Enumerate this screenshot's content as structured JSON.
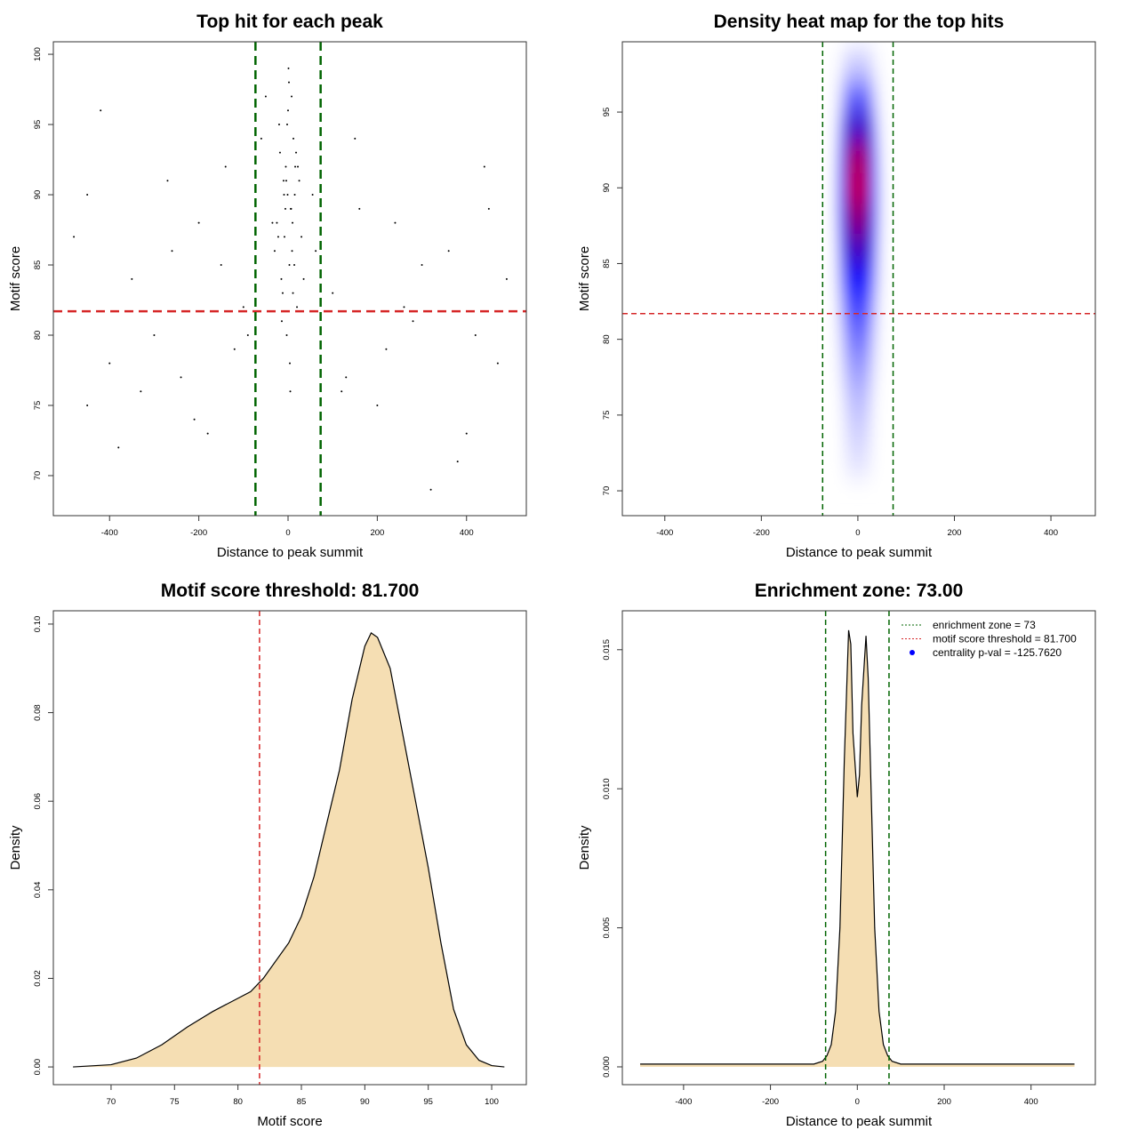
{
  "chart_data": [
    {
      "type": "scatter",
      "title": "Top hit for each peak",
      "xlabel": "Distance to peak summit",
      "ylabel": "Motif score",
      "x": [
        -5,
        10,
        -20,
        3,
        15,
        -12,
        25,
        -8,
        0,
        6,
        -30,
        18,
        -3,
        12,
        -15,
        8,
        -25,
        20,
        -1,
        4,
        -10,
        30,
        -18,
        14,
        2,
        -6,
        22,
        -14,
        9,
        -2,
        35,
        -35,
        5,
        -9,
        16,
        -22,
        1,
        11,
        -4,
        7,
        -480,
        -450,
        -420,
        -380,
        -350,
        -300,
        -270,
        -240,
        -200,
        -180,
        -150,
        -120,
        -100,
        -450,
        -330,
        -260,
        -210,
        -140,
        -90,
        -400,
        100,
        130,
        160,
        200,
        240,
        280,
        320,
        360,
        400,
        440,
        470,
        490,
        150,
        220,
        300,
        380,
        450,
        120,
        260,
        420,
        -60,
        55,
        -50,
        62
      ],
      "y": [
        92,
        88,
        95,
        85,
        90,
        83,
        91,
        87,
        96,
        89,
        86,
        93,
        80,
        94,
        84,
        97,
        88,
        82,
        90,
        78,
        91,
        87,
        93,
        85,
        98,
        89,
        92,
        81,
        86,
        95,
        84,
        88,
        76,
        90,
        92,
        87,
        99,
        83,
        91,
        89,
        87,
        75,
        96,
        72,
        84,
        80,
        91,
        77,
        88,
        73,
        85,
        79,
        82,
        90,
        76,
        86,
        74,
        92,
        80,
        78,
        83,
        77,
        89,
        75,
        88,
        81,
        69,
        86,
        73,
        92,
        78,
        84,
        94,
        79,
        85,
        71,
        89,
        76,
        82,
        80,
        94,
        90,
        97,
        86
      ],
      "color": "#000000",
      "xlim": [
        -526,
        534
      ],
      "ylim": [
        67.15,
        100.89
      ],
      "xticks": [
        -400,
        -200,
        0,
        200,
        400
      ],
      "yticks": [
        70,
        75,
        80,
        85,
        90,
        95,
        100
      ],
      "hlines": [
        {
          "value": 81.7,
          "color": "#d62728"
        }
      ],
      "vlines": [
        {
          "value": -73,
          "color": "#006400"
        },
        {
          "value": 73,
          "color": "#006400"
        }
      ]
    },
    {
      "type": "heatmap",
      "title": "Density heat map for the top hits",
      "xlabel": "Distance to peak summit",
      "ylabel": "Motif score",
      "x": [
        -45,
        -30,
        -15,
        0,
        15,
        30,
        45
      ],
      "y": [
        72,
        74,
        76,
        78,
        80,
        82,
        84,
        86,
        88,
        90,
        92,
        94,
        96,
        98
      ],
      "z": [
        [
          0,
          0.02,
          0.05,
          0.06,
          0.05,
          0.02,
          0
        ],
        [
          0,
          0.03,
          0.08,
          0.1,
          0.08,
          0.03,
          0
        ],
        [
          0,
          0.05,
          0.12,
          0.14,
          0.12,
          0.05,
          0
        ],
        [
          0.01,
          0.08,
          0.18,
          0.2,
          0.18,
          0.08,
          0.01
        ],
        [
          0.02,
          0.12,
          0.26,
          0.28,
          0.26,
          0.12,
          0.02
        ],
        [
          0.03,
          0.18,
          0.36,
          0.36,
          0.36,
          0.18,
          0.03
        ],
        [
          0.05,
          0.28,
          0.5,
          0.48,
          0.5,
          0.28,
          0.05
        ],
        [
          0.06,
          0.38,
          0.66,
          0.6,
          0.66,
          0.38,
          0.06
        ],
        [
          0.08,
          0.45,
          0.82,
          0.7,
          0.82,
          0.45,
          0.08
        ],
        [
          0.08,
          0.48,
          0.95,
          0.76,
          0.95,
          0.48,
          0.08
        ],
        [
          0.07,
          0.42,
          0.9,
          0.72,
          0.9,
          0.42,
          0.07
        ],
        [
          0.05,
          0.3,
          0.66,
          0.55,
          0.66,
          0.3,
          0.05
        ],
        [
          0.03,
          0.15,
          0.35,
          0.3,
          0.35,
          0.15,
          0.03
        ],
        [
          0.01,
          0.05,
          0.12,
          0.1,
          0.12,
          0.05,
          0.01
        ]
      ],
      "colormap": [
        "#ffffff",
        "#0000ff",
        "#ff0000"
      ],
      "xlim": [
        -488,
        492
      ],
      "ylim": [
        68.36,
        99.64
      ],
      "xticks": [
        -400,
        -200,
        0,
        200,
        400
      ],
      "yticks": [
        70,
        75,
        80,
        85,
        90,
        95
      ],
      "hlines": [
        {
          "value": 81.7,
          "color": "#d62728"
        }
      ],
      "vlines": [
        {
          "value": -73,
          "color": "#006400"
        },
        {
          "value": 73,
          "color": "#006400"
        }
      ]
    },
    {
      "type": "area",
      "title": "Motif score threshold: 81.700",
      "xlabel": "Motif score",
      "ylabel": "Density",
      "x": [
        67,
        70,
        72,
        74,
        76,
        78,
        80,
        81,
        82,
        84,
        85,
        86,
        87,
        88,
        89,
        90,
        90.5,
        91,
        92,
        93,
        94,
        95,
        96,
        97,
        98,
        99,
        100,
        101
      ],
      "values": [
        0,
        0.0005,
        0.002,
        0.005,
        0.009,
        0.0125,
        0.0155,
        0.017,
        0.02,
        0.028,
        0.034,
        0.043,
        0.055,
        0.067,
        0.083,
        0.095,
        0.098,
        0.097,
        0.09,
        0.075,
        0.06,
        0.045,
        0.028,
        0.013,
        0.005,
        0.0015,
        0.0003,
        0
      ],
      "color": "#f5deb3",
      "xlim": [
        65.45,
        102.73
      ],
      "ylim": [
        -0.004,
        0.103
      ],
      "xticks": [
        70,
        75,
        80,
        85,
        90,
        95,
        100
      ],
      "yticks": [
        {
          "value": 0,
          "label": "0.00"
        },
        {
          "value": 0.02,
          "label": "0.02"
        },
        {
          "value": 0.04,
          "label": "0.04"
        },
        {
          "value": 0.06,
          "label": "0.06"
        },
        {
          "value": 0.08,
          "label": "0.08"
        },
        {
          "value": 0.1,
          "label": "0.10"
        }
      ],
      "vlines": [
        {
          "value": 81.7,
          "color": "#d62728"
        }
      ]
    },
    {
      "type": "area",
      "title": "Enrichment zone: 73.00",
      "xlabel": "Distance to peak summit",
      "ylabel": "Density",
      "x": [
        -500,
        -300,
        -100,
        -80,
        -70,
        -60,
        -50,
        -40,
        -30,
        -20,
        -15,
        -10,
        0,
        5,
        10,
        20,
        25,
        30,
        40,
        50,
        60,
        70,
        80,
        100,
        300,
        500
      ],
      "values": [
        0.0001,
        0.0001,
        0.0001,
        0.0002,
        0.0004,
        0.0008,
        0.002,
        0.005,
        0.011,
        0.0157,
        0.0152,
        0.012,
        0.0097,
        0.0105,
        0.013,
        0.0155,
        0.014,
        0.011,
        0.005,
        0.002,
        0.0008,
        0.0004,
        0.0002,
        0.0001,
        0.0001,
        0.0001
      ],
      "color": "#f5deb3",
      "xlim": [
        -541,
        548
      ],
      "ylim": [
        -0.00064,
        0.0164
      ],
      "xticks": [
        -400,
        -200,
        0,
        200,
        400
      ],
      "yticks": [
        {
          "value": 0,
          "label": "0.000"
        },
        {
          "value": 0.005,
          "label": "0.005"
        },
        {
          "value": 0.01,
          "label": "0.010"
        },
        {
          "value": 0.015,
          "label": "0.015"
        }
      ],
      "vlines": [
        {
          "value": -73,
          "color": "#006400"
        },
        {
          "value": 73,
          "color": "#006400"
        }
      ],
      "legend_position": "top-right",
      "legend": [
        {
          "label": "enrichment zone = 73",
          "color": "#006400",
          "style": "dotted"
        },
        {
          "label": "motif score threshold = 81.700",
          "color": "#d62728",
          "style": "dotted"
        },
        {
          "label": "centrality p-val = -125.7620",
          "color": "#0000ff",
          "style": "point"
        }
      ]
    }
  ]
}
